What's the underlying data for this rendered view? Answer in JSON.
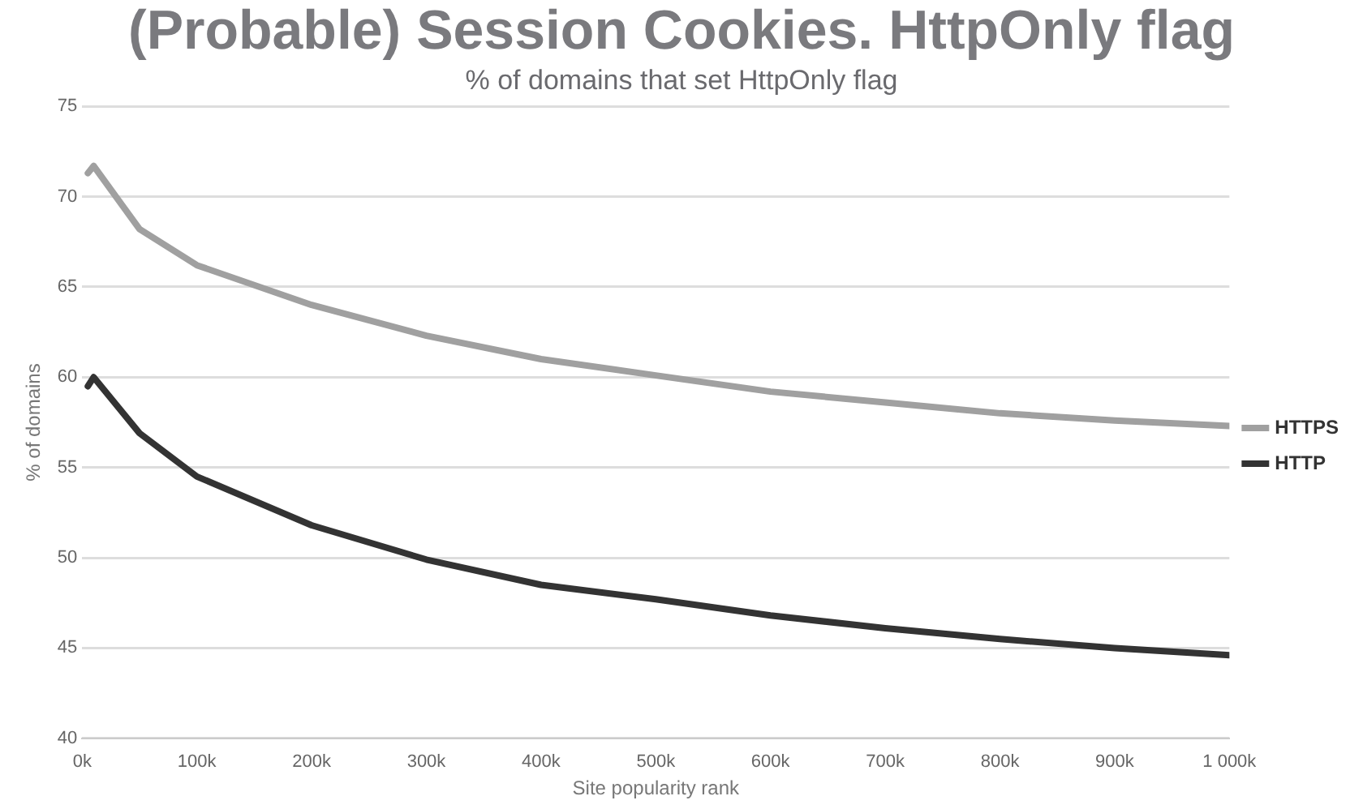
{
  "chart_data": {
    "type": "line",
    "title": "(Probable) Session Cookies. HttpOnly flag",
    "subtitle": "% of domains that set HttpOnly flag",
    "xlabel": "Site popularity rank",
    "ylabel": "% of domains",
    "x": [
      5000,
      10000,
      50000,
      100000,
      200000,
      300000,
      400000,
      500000,
      600000,
      700000,
      800000,
      900000,
      1000000
    ],
    "series": [
      {
        "name": "HTTPS",
        "color": "#a0a0a0",
        "values": [
          71.3,
          71.7,
          68.2,
          66.2,
          64.0,
          62.3,
          61.0,
          60.1,
          59.2,
          58.6,
          58.0,
          57.6,
          57.3
        ]
      },
      {
        "name": "HTTP",
        "color": "#333333",
        "values": [
          59.5,
          60.0,
          56.9,
          54.5,
          51.8,
          49.9,
          48.5,
          47.7,
          46.8,
          46.1,
          45.5,
          45.0,
          44.6
        ]
      }
    ],
    "xlim": [
      0,
      1000000
    ],
    "xticks": [
      {
        "value": 0,
        "label": "0k"
      },
      {
        "value": 100000,
        "label": "100k"
      },
      {
        "value": 200000,
        "label": "200k"
      },
      {
        "value": 300000,
        "label": "300k"
      },
      {
        "value": 400000,
        "label": "400k"
      },
      {
        "value": 500000,
        "label": "500k"
      },
      {
        "value": 600000,
        "label": "600k"
      },
      {
        "value": 700000,
        "label": "700k"
      },
      {
        "value": 800000,
        "label": "800k"
      },
      {
        "value": 900000,
        "label": "900k"
      },
      {
        "value": 1000000,
        "label": "1 000k"
      }
    ],
    "ylim": [
      40,
      75
    ],
    "yticks": [
      40,
      45,
      50,
      55,
      60,
      65,
      70,
      75
    ],
    "grid": "y",
    "legend": "right",
    "marker": "none",
    "line_style": "solid"
  }
}
